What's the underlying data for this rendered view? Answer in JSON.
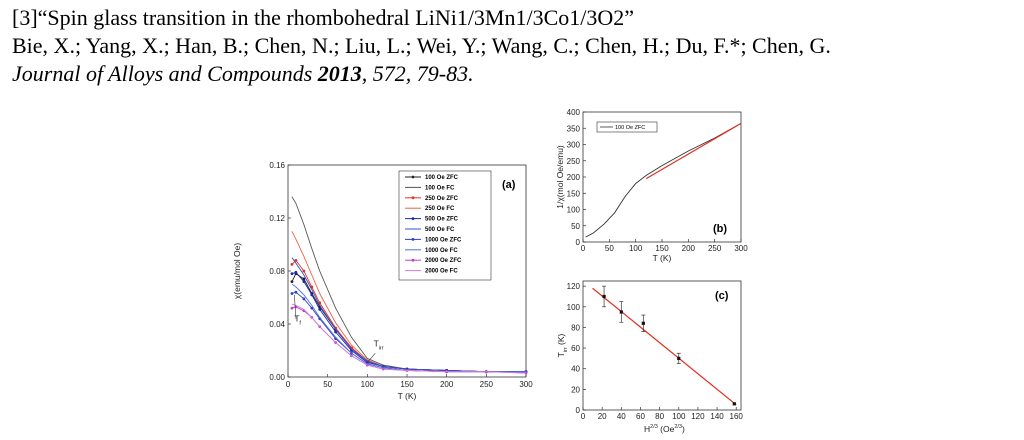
{
  "citation": {
    "title": "[3]“Spin glass transition in the rhombohedral LiNi1/3Mn1/3Co1/3O2”",
    "authors": "Bie, X.; Yang, X.; Han, B.; Chen, N.; Liu, L.; Wei, Y.; Wang, C.; Chen, H.; Du, F.*; Chen, G.",
    "journal": "Journal of Alloys and Compounds",
    "year": "2013",
    "rest": ", 572, 79-83."
  },
  "chart_data": [
    {
      "panel": "(a)",
      "type": "line",
      "xlabel": "T (K)",
      "ylabel": "χ(emu/mol Oe)",
      "xlim": [
        0,
        300
      ],
      "ylim": [
        0,
        0.16
      ],
      "xticks": [
        "0",
        "50",
        "100",
        "150",
        "200",
        "250",
        "300"
      ],
      "yticks": [
        "0.00",
        "0.04",
        "0.08",
        "0.12",
        "0.16"
      ],
      "annotations": [
        {
          "text": "T",
          "sub": "f",
          "x": 8,
          "y": 0.042
        },
        {
          "text": "T",
          "sub": "irr",
          "x": 108,
          "y": 0.023
        }
      ],
      "series": [
        {
          "name": "100 Oe ZFC",
          "color": "#222222",
          "marker": "dot",
          "x": [
            5,
            10,
            20,
            30,
            40,
            60,
            80,
            100,
            120,
            150,
            200,
            250,
            300
          ],
          "y": [
            0.072,
            0.078,
            0.074,
            0.063,
            0.053,
            0.036,
            0.022,
            0.012,
            0.008,
            0.006,
            0.005,
            0.004,
            0.004
          ]
        },
        {
          "name": "100 Oe FC",
          "color": "#555555",
          "marker": "line",
          "x": [
            5,
            10,
            20,
            30,
            40,
            60,
            80,
            100,
            120,
            150,
            200,
            250,
            300
          ],
          "y": [
            0.136,
            0.131,
            0.115,
            0.097,
            0.08,
            0.052,
            0.03,
            0.014,
            0.009,
            0.006,
            0.005,
            0.004,
            0.004
          ]
        },
        {
          "name": "250 Oe ZFC",
          "color": "#e03020",
          "marker": "dot",
          "x": [
            5,
            10,
            20,
            30,
            40,
            60,
            80,
            100,
            120,
            150,
            200,
            250,
            300
          ],
          "y": [
            0.085,
            0.088,
            0.08,
            0.068,
            0.056,
            0.037,
            0.022,
            0.012,
            0.008,
            0.006,
            0.005,
            0.004,
            0.004
          ]
        },
        {
          "name": "250 Oe FC",
          "color": "#f06040",
          "marker": "line",
          "x": [
            5,
            10,
            20,
            30,
            40,
            60,
            80,
            100,
            120,
            150,
            200,
            250,
            300
          ],
          "y": [
            0.11,
            0.104,
            0.091,
            0.077,
            0.063,
            0.041,
            0.024,
            0.013,
            0.008,
            0.006,
            0.005,
            0.004,
            0.004
          ]
        },
        {
          "name": "500 Oe ZFC",
          "color": "#1a2ab0",
          "marker": "dot",
          "x": [
            5,
            10,
            20,
            30,
            40,
            60,
            80,
            100,
            120,
            150,
            200,
            250,
            300
          ],
          "y": [
            0.078,
            0.079,
            0.072,
            0.062,
            0.051,
            0.034,
            0.02,
            0.011,
            0.008,
            0.006,
            0.005,
            0.004,
            0.004
          ]
        },
        {
          "name": "500 Oe FC",
          "color": "#3050d0",
          "marker": "line",
          "x": [
            5,
            10,
            20,
            30,
            40,
            60,
            80,
            100,
            120,
            150,
            200,
            250,
            300
          ],
          "y": [
            0.09,
            0.086,
            0.077,
            0.066,
            0.054,
            0.036,
            0.021,
            0.012,
            0.008,
            0.006,
            0.005,
            0.004,
            0.004
          ]
        },
        {
          "name": "1000 Oe ZFC",
          "color": "#3040c0",
          "marker": "dot",
          "x": [
            5,
            10,
            20,
            30,
            40,
            60,
            80,
            100,
            120,
            150,
            200,
            250,
            300
          ],
          "y": [
            0.063,
            0.064,
            0.059,
            0.052,
            0.044,
            0.029,
            0.018,
            0.01,
            0.007,
            0.005,
            0.004,
            0.004,
            0.004
          ]
        },
        {
          "name": "1000 Oe FC",
          "color": "#5070e0",
          "marker": "line",
          "x": [
            5,
            10,
            20,
            30,
            40,
            60,
            80,
            100,
            120,
            150,
            200,
            250,
            300
          ],
          "y": [
            0.07,
            0.068,
            0.062,
            0.054,
            0.045,
            0.03,
            0.018,
            0.01,
            0.007,
            0.005,
            0.004,
            0.004,
            0.004
          ]
        },
        {
          "name": "2000 Oe ZFC",
          "color": "#c040c0",
          "marker": "dot",
          "x": [
            5,
            10,
            20,
            30,
            40,
            60,
            80,
            100,
            120,
            150,
            200,
            250,
            300
          ],
          "y": [
            0.052,
            0.053,
            0.05,
            0.045,
            0.038,
            0.026,
            0.016,
            0.009,
            0.006,
            0.005,
            0.004,
            0.004,
            0.003
          ]
        },
        {
          "name": "2000 Oe FC",
          "color": "#d080e0",
          "marker": "line",
          "x": [
            5,
            10,
            20,
            30,
            40,
            60,
            80,
            100,
            120,
            150,
            200,
            250,
            300
          ],
          "y": [
            0.055,
            0.054,
            0.051,
            0.045,
            0.038,
            0.026,
            0.016,
            0.009,
            0.006,
            0.005,
            0.004,
            0.004,
            0.003
          ]
        }
      ]
    },
    {
      "panel": "(b)",
      "type": "line",
      "xlabel": "T (K)",
      "ylabel": "1/χ(mol Oe/emu)",
      "xlim": [
        0,
        300
      ],
      "ylim": [
        0,
        400
      ],
      "xticks": [
        "0",
        "50",
        "100",
        "150",
        "200",
        "250",
        "300"
      ],
      "yticks": [
        "0",
        "50",
        "100",
        "150",
        "200",
        "250",
        "300",
        "350",
        "400"
      ],
      "legend": "100 Oe ZFC",
      "series": [
        {
          "name": "100 Oe ZFC",
          "color": "#333333",
          "x": [
            5,
            20,
            40,
            60,
            80,
            100,
            120,
            150,
            200,
            250,
            300
          ],
          "y": [
            15,
            28,
            55,
            90,
            140,
            180,
            205,
            235,
            280,
            320,
            365
          ]
        },
        {
          "fit": true,
          "color": "#e03020",
          "x": [
            120,
            300
          ],
          "y": [
            195,
            365
          ]
        }
      ]
    },
    {
      "panel": "(c)",
      "type": "scatter",
      "xlabel": "H",
      "xlabel_sup": "2/3",
      "xlabel_unit": " (Oe",
      "xlabel_unit_sup": "2/3",
      "xlabel_close": ")",
      "ylabel": "T",
      "ylabel_sub": "irr",
      "ylabel_unit": " (K)",
      "xlim": [
        0,
        165
      ],
      "ylim": [
        0,
        125
      ],
      "xticks": [
        "0",
        "20",
        "40",
        "60",
        "80",
        "100",
        "120",
        "140",
        "160"
      ],
      "yticks": [
        "0",
        "20",
        "40",
        "60",
        "80",
        "100",
        "120"
      ],
      "points": [
        {
          "x": 22,
          "y": 110,
          "err": 10
        },
        {
          "x": 40,
          "y": 95,
          "err": 10
        },
        {
          "x": 63,
          "y": 84,
          "err": 8
        },
        {
          "x": 100,
          "y": 50,
          "err": 5
        },
        {
          "x": 158,
          "y": 6,
          "err": 0
        }
      ],
      "fit": {
        "x": [
          10,
          160
        ],
        "y": [
          118,
          5
        ],
        "color": "#e03020"
      }
    }
  ]
}
